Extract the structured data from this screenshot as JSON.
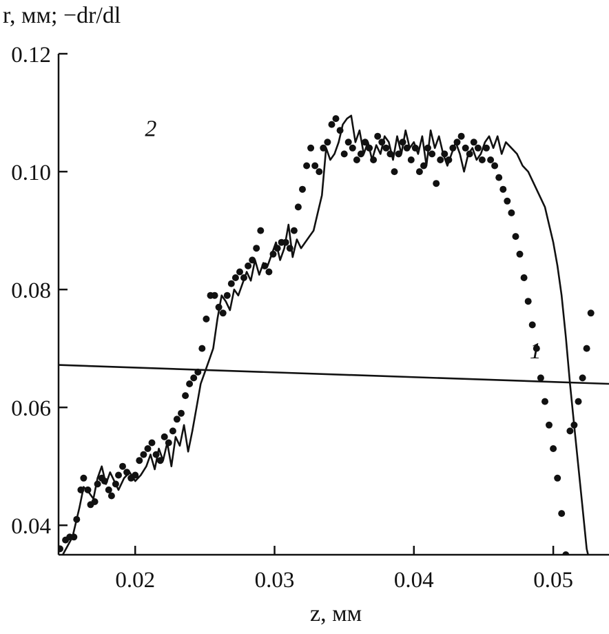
{
  "chart_data": {
    "type": "line",
    "ylabel": "r, мм; −dr/dl",
    "xlabel": "z, мм",
    "xlim": [
      0.0145,
      0.054
    ],
    "ylim": [
      0.035,
      0.12
    ],
    "x_ticks": [
      {
        "value": 0.02,
        "label": "0.02"
      },
      {
        "value": 0.03,
        "label": "0.03"
      },
      {
        "value": 0.04,
        "label": "0.04"
      },
      {
        "value": 0.05,
        "label": "0.05"
      }
    ],
    "y_ticks": [
      {
        "value": 0.04,
        "label": "0.04"
      },
      {
        "value": 0.06,
        "label": "0.06"
      },
      {
        "value": 0.08,
        "label": "0.08"
      },
      {
        "value": 0.1,
        "label": "0.10"
      },
      {
        "value": 0.12,
        "label": "0.12"
      }
    ],
    "grid": false,
    "series": [
      {
        "name": "1",
        "style": "line",
        "color": "#111111",
        "label_at": [
          0.0483,
          0.0683
        ],
        "x": [
          0.0145,
          0.054
        ],
        "y": [
          0.0672,
          0.064
        ]
      },
      {
        "name": "2",
        "style": "line",
        "color": "#111111",
        "label_at": [
          0.0207,
          0.106
        ],
        "x": [
          0.0148,
          0.0155,
          0.016,
          0.0163,
          0.0167,
          0.017,
          0.0173,
          0.0176,
          0.0179,
          0.0182,
          0.0185,
          0.0188,
          0.0192,
          0.0196,
          0.02,
          0.0204,
          0.0208,
          0.0211,
          0.0214,
          0.0217,
          0.022,
          0.0223,
          0.0226,
          0.0229,
          0.0232,
          0.0235,
          0.0238,
          0.0241,
          0.0244,
          0.0247,
          0.025,
          0.0253,
          0.0256,
          0.0259,
          0.0262,
          0.0265,
          0.0268,
          0.0271,
          0.0274,
          0.0277,
          0.028,
          0.0283,
          0.0286,
          0.0289,
          0.0292,
          0.0295,
          0.0298,
          0.0301,
          0.0304,
          0.0307,
          0.031,
          0.0313,
          0.0316,
          0.0319,
          0.0322,
          0.0325,
          0.0328,
          0.0331,
          0.0334,
          0.0337,
          0.034,
          0.0343,
          0.0346,
          0.0349,
          0.0352,
          0.0355,
          0.0358,
          0.0361,
          0.0364,
          0.0367,
          0.037,
          0.0373,
          0.0376,
          0.0379,
          0.0382,
          0.0385,
          0.0388,
          0.0391,
          0.0394,
          0.0397,
          0.04,
          0.0403,
          0.0406,
          0.0409,
          0.0412,
          0.0415,
          0.0418,
          0.0421,
          0.0424,
          0.0427,
          0.043,
          0.0433,
          0.0436,
          0.0439,
          0.0442,
          0.0445,
          0.0448,
          0.0451,
          0.0454,
          0.0457,
          0.046,
          0.0463,
          0.0466,
          0.047,
          0.0474,
          0.0478,
          0.0482,
          0.0486,
          0.049,
          0.0494,
          0.0497,
          0.05,
          0.0503,
          0.0506,
          0.0509,
          0.0512,
          0.0515,
          0.0518,
          0.0521,
          0.0524,
          0.0527
        ],
        "y": [
          0.035,
          0.038,
          0.043,
          0.0465,
          0.0455,
          0.0445,
          0.048,
          0.05,
          0.047,
          0.049,
          0.0475,
          0.046,
          0.048,
          0.049,
          0.0475,
          0.0485,
          0.05,
          0.052,
          0.0495,
          0.053,
          0.051,
          0.054,
          0.05,
          0.055,
          0.0535,
          0.057,
          0.0525,
          0.056,
          0.06,
          0.064,
          0.066,
          0.068,
          0.07,
          0.075,
          0.079,
          0.078,
          0.0765,
          0.08,
          0.079,
          0.081,
          0.083,
          0.0815,
          0.085,
          0.0825,
          0.0845,
          0.084,
          0.086,
          0.088,
          0.085,
          0.087,
          0.091,
          0.0855,
          0.0885,
          0.087,
          0.088,
          0.089,
          0.09,
          0.093,
          0.096,
          0.104,
          0.102,
          0.103,
          0.105,
          0.108,
          0.109,
          0.1095,
          0.105,
          0.107,
          0.103,
          0.105,
          0.102,
          0.1045,
          0.103,
          0.106,
          0.105,
          0.102,
          0.106,
          0.103,
          0.107,
          0.104,
          0.105,
          0.103,
          0.106,
          0.101,
          0.107,
          0.104,
          0.106,
          0.103,
          0.101,
          0.103,
          0.105,
          0.103,
          0.1,
          0.103,
          0.104,
          0.102,
          0.103,
          0.105,
          0.106,
          0.104,
          0.106,
          0.103,
          0.105,
          0.104,
          0.103,
          0.101,
          0.1,
          0.098,
          0.096,
          0.094,
          0.091,
          0.088,
          0.084,
          0.079,
          0.072,
          0.064,
          0.057,
          0.05,
          0.043,
          0.036,
          0.033
        ]
      },
      {
        "name": "",
        "style": "markers",
        "marker": "filled-circle",
        "color": "#111111",
        "x": [
          0.0146,
          0.015,
          0.0153,
          0.0156,
          0.0158,
          0.0161,
          0.0163,
          0.0166,
          0.0168,
          0.0171,
          0.0173,
          0.0176,
          0.0178,
          0.0181,
          0.0183,
          0.0186,
          0.0188,
          0.0191,
          0.0194,
          0.0197,
          0.02,
          0.0203,
          0.0206,
          0.0209,
          0.0212,
          0.0215,
          0.0218,
          0.0221,
          0.0224,
          0.0227,
          0.023,
          0.0233,
          0.0236,
          0.0239,
          0.0242,
          0.0245,
          0.0248,
          0.0251,
          0.0254,
          0.0257,
          0.026,
          0.0263,
          0.0266,
          0.0269,
          0.0272,
          0.0275,
          0.0278,
          0.0281,
          0.0284,
          0.0287,
          0.029,
          0.0293,
          0.0296,
          0.0299,
          0.0302,
          0.0305,
          0.0308,
          0.0311,
          0.0314,
          0.0317,
          0.032,
          0.0323,
          0.0326,
          0.0329,
          0.0332,
          0.0335,
          0.0338,
          0.0341,
          0.0344,
          0.0347,
          0.035,
          0.0353,
          0.0356,
          0.0359,
          0.0362,
          0.0365,
          0.0368,
          0.0371,
          0.0374,
          0.0377,
          0.038,
          0.0383,
          0.0386,
          0.0389,
          0.0392,
          0.0395,
          0.0398,
          0.0401,
          0.0404,
          0.0407,
          0.041,
          0.0413,
          0.0416,
          0.0419,
          0.0422,
          0.0425,
          0.0428,
          0.0431,
          0.0434,
          0.0437,
          0.044,
          0.0443,
          0.0446,
          0.0449,
          0.0452,
          0.0455,
          0.0458,
          0.0461,
          0.0464,
          0.0467,
          0.047,
          0.0473,
          0.0476,
          0.0479,
          0.0482,
          0.0485,
          0.0488,
          0.0491,
          0.0494,
          0.0497,
          0.05,
          0.0503,
          0.0506,
          0.0509,
          0.0512,
          0.0515,
          0.0518,
          0.0521,
          0.0524,
          0.0527
        ],
        "y": [
          0.036,
          0.0375,
          0.038,
          0.038,
          0.041,
          0.046,
          0.048,
          0.046,
          0.0435,
          0.044,
          0.047,
          0.048,
          0.0475,
          0.046,
          0.045,
          0.047,
          0.0485,
          0.05,
          0.049,
          0.048,
          0.0485,
          0.051,
          0.052,
          0.053,
          0.054,
          0.052,
          0.051,
          0.055,
          0.054,
          0.056,
          0.058,
          0.059,
          0.062,
          0.064,
          0.065,
          0.066,
          0.07,
          0.075,
          0.079,
          0.079,
          0.077,
          0.076,
          0.079,
          0.081,
          0.082,
          0.083,
          0.082,
          0.084,
          0.085,
          0.087,
          0.09,
          0.084,
          0.083,
          0.086,
          0.087,
          0.088,
          0.088,
          0.087,
          0.09,
          0.094,
          0.097,
          0.101,
          0.104,
          0.101,
          0.1,
          0.104,
          0.105,
          0.108,
          0.109,
          0.107,
          0.103,
          0.105,
          0.104,
          0.102,
          0.103,
          0.105,
          0.104,
          0.102,
          0.106,
          0.105,
          0.104,
          0.103,
          0.1,
          0.103,
          0.105,
          0.104,
          0.102,
          0.104,
          0.1,
          0.101,
          0.104,
          0.103,
          0.098,
          0.102,
          0.103,
          0.102,
          0.104,
          0.105,
          0.106,
          0.104,
          0.103,
          0.105,
          0.104,
          0.102,
          0.104,
          0.102,
          0.101,
          0.099,
          0.097,
          0.095,
          0.093,
          0.089,
          0.086,
          0.082,
          0.078,
          0.074,
          0.07,
          0.065,
          0.061,
          0.057,
          0.053,
          0.048,
          0.042,
          0.035,
          0.056,
          0.057,
          0.061,
          0.065,
          0.07,
          0.076
        ]
      }
    ]
  }
}
